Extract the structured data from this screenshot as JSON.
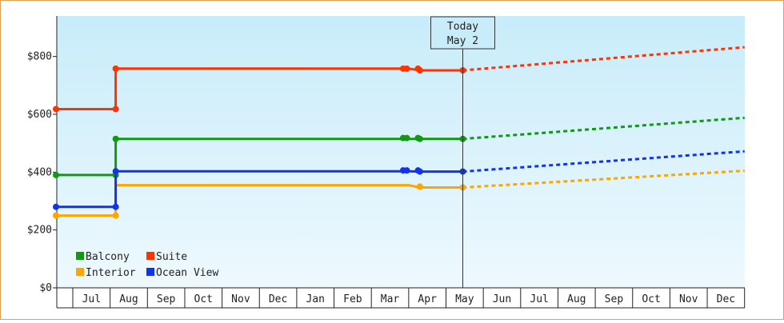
{
  "chart_data": {
    "type": "line",
    "y_tick_labels": [
      "$0",
      "$200",
      "$400",
      "$600",
      "$800"
    ],
    "y_ticks": [
      0,
      200,
      400,
      600,
      800
    ],
    "ylim": [
      0,
      940
    ],
    "x_month_labels": [
      "Jul",
      "Aug",
      "Sep",
      "Oct",
      "Nov",
      "Dec",
      "Jan",
      "Feb",
      "Mar",
      "Apr",
      "May",
      "Jun",
      "Jul",
      "Aug",
      "Sep",
      "Oct",
      "Nov",
      "Dec"
    ],
    "today": {
      "line1": "Today",
      "line2": "May 2",
      "x": 10.45
    },
    "grid": false,
    "legend_position": "bottom-left",
    "series": [
      {
        "name": "Balcony",
        "color": "#119911",
        "points": [
          [
            -0.45,
            390
          ],
          [
            1.15,
            390
          ],
          [
            1.15,
            515
          ],
          [
            9.0,
            515
          ],
          [
            9.3,
            515
          ],
          [
            10.45,
            515
          ]
        ],
        "markers": [
          [
            -0.45,
            390
          ],
          [
            1.15,
            390
          ],
          [
            1.15,
            515
          ],
          [
            8.85,
            518
          ],
          [
            8.95,
            518
          ],
          [
            9.25,
            518
          ],
          [
            9.3,
            515
          ],
          [
            10.45,
            515
          ]
        ],
        "forecast_end": 588
      },
      {
        "name": "Suite",
        "color": "#ff3300",
        "points": [
          [
            -0.45,
            618
          ],
          [
            1.15,
            618
          ],
          [
            1.15,
            758
          ],
          [
            9.0,
            758
          ],
          [
            9.3,
            752
          ],
          [
            10.45,
            752
          ]
        ],
        "markers": [
          [
            -0.45,
            618
          ],
          [
            1.15,
            618
          ],
          [
            1.15,
            758
          ],
          [
            8.85,
            758
          ],
          [
            8.95,
            758
          ],
          [
            9.25,
            758
          ],
          [
            9.3,
            752
          ],
          [
            10.45,
            752
          ]
        ],
        "forecast_end": 832
      },
      {
        "name": "Interior",
        "color": "#ffa500",
        "points": [
          [
            -0.45,
            250
          ],
          [
            1.15,
            250
          ],
          [
            1.15,
            355
          ],
          [
            9.0,
            355
          ],
          [
            9.3,
            347
          ],
          [
            10.45,
            347
          ]
        ],
        "markers": [
          [
            -0.45,
            250
          ],
          [
            1.15,
            250
          ],
          [
            9.3,
            350
          ],
          [
            10.45,
            347
          ]
        ],
        "forecast_end": 405
      },
      {
        "name": "Ocean View",
        "color": "#1133ee",
        "points": [
          [
            -0.45,
            280
          ],
          [
            1.15,
            280
          ],
          [
            1.15,
            403
          ],
          [
            9.0,
            403
          ],
          [
            9.3,
            402
          ],
          [
            10.45,
            402
          ]
        ],
        "markers": [
          [
            -0.45,
            280
          ],
          [
            1.15,
            280
          ],
          [
            1.15,
            403
          ],
          [
            8.85,
            406
          ],
          [
            8.95,
            406
          ],
          [
            9.25,
            406
          ],
          [
            9.3,
            402
          ],
          [
            10.45,
            402
          ]
        ],
        "forecast_end": 472
      }
    ],
    "x_end": 18.0
  }
}
